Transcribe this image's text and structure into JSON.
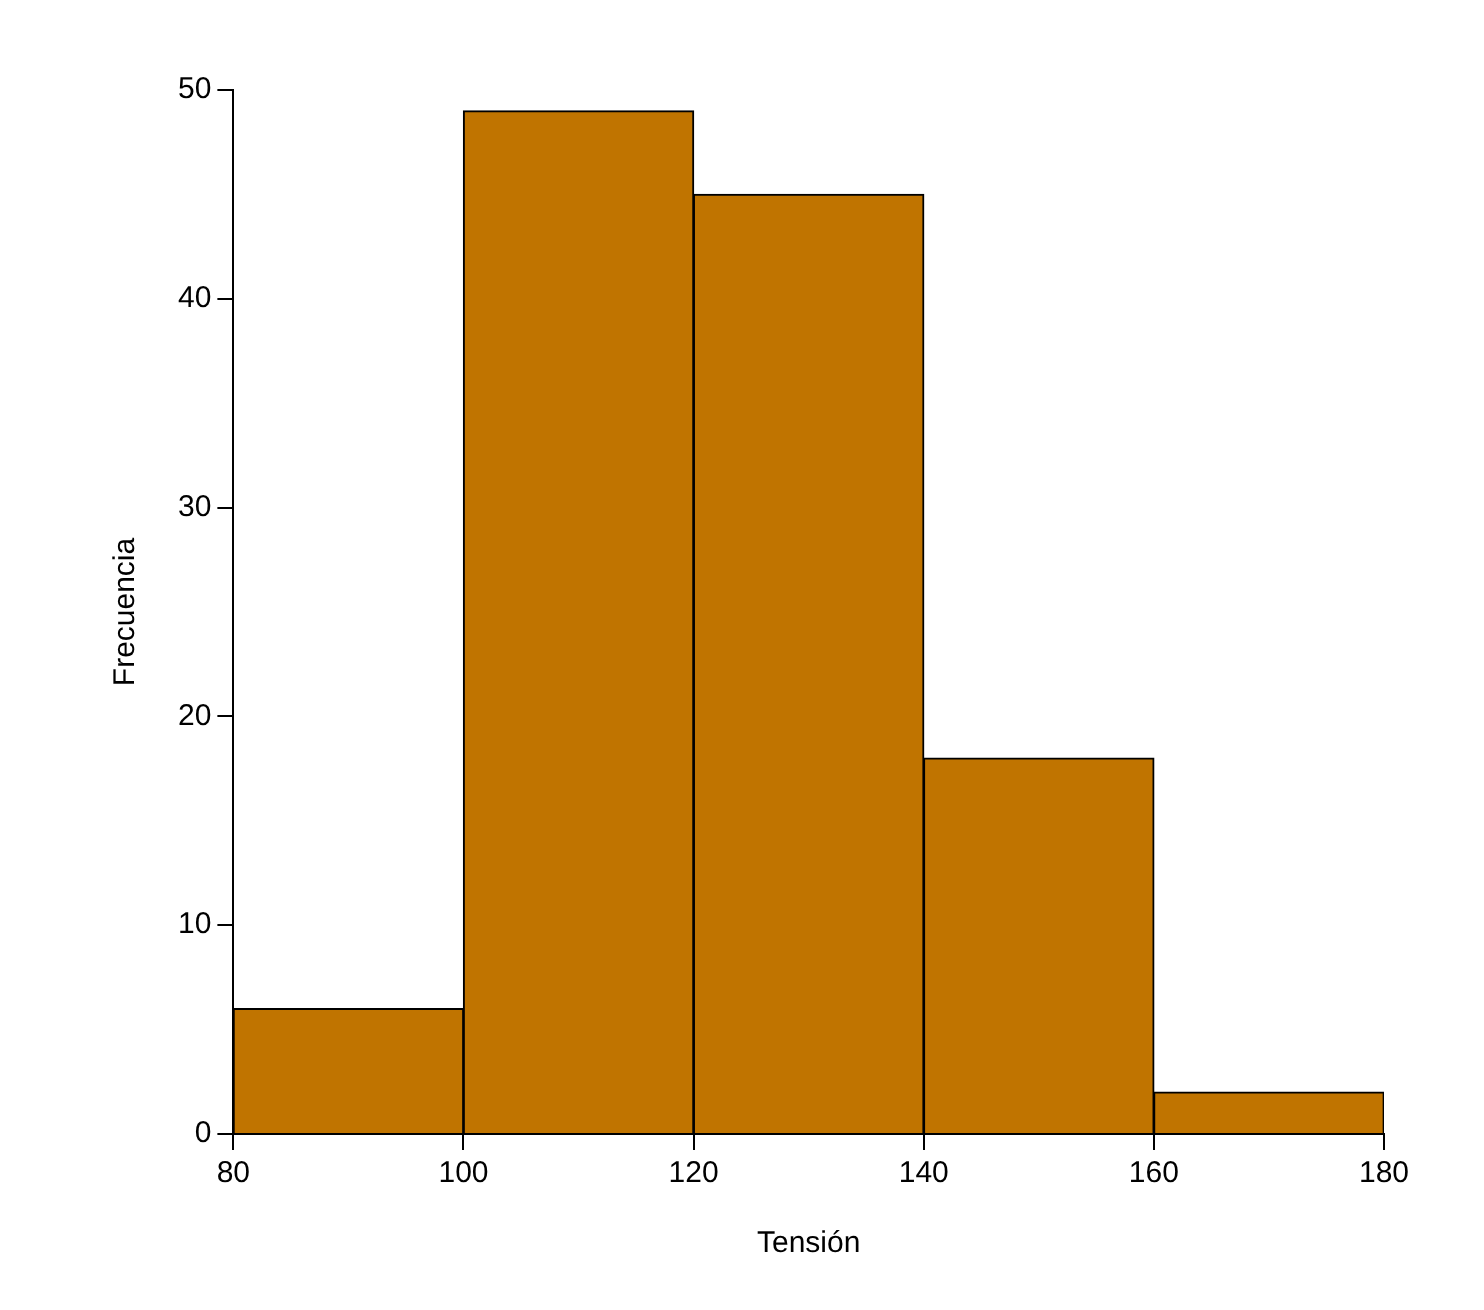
{
  "chart_data": {
    "type": "histogram",
    "xlabel": "Tensión",
    "ylabel": "Frecuencia",
    "bins": [
      80,
      100,
      120,
      140,
      160,
      180
    ],
    "values": [
      6,
      49,
      45,
      18,
      2
    ],
    "color": "#c07400",
    "xlim": [
      80,
      180
    ],
    "xticks": [
      80,
      100,
      120,
      140,
      160,
      180
    ],
    "ylim": [
      0,
      50
    ],
    "yticks": [
      0,
      10,
      20,
      30,
      40,
      50
    ],
    "grid": false,
    "legend": false
  }
}
